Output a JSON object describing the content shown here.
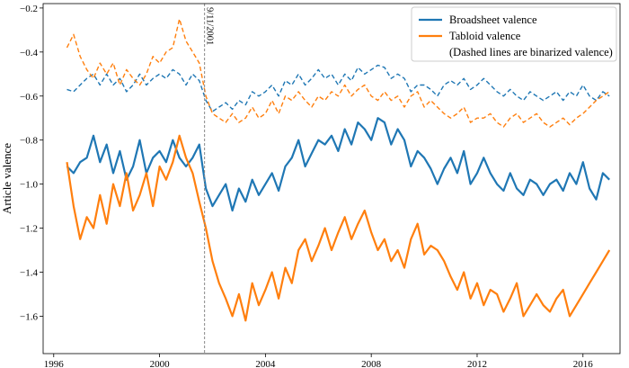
{
  "chart_data": {
    "type": "line",
    "xlabel": "",
    "ylabel": "Article valence",
    "xlim": [
      1995.6,
      2017.4
    ],
    "ylim": [
      -1.77,
      -0.18
    ],
    "x_ticks": [
      1996,
      2000,
      2004,
      2008,
      2012,
      2016
    ],
    "y_ticks": [
      -1.6,
      -1.4,
      -1.2,
      -1.0,
      -0.8,
      -0.6,
      -0.4,
      -0.2
    ],
    "grid": false,
    "legend_position": "top-right",
    "legend_note": "(Dashed lines are binarized valence)",
    "annotation": {
      "x": 2001.7,
      "text": "9/11/2001",
      "style": "dashed vertical line"
    },
    "colors": {
      "broadsheet": "#1f77b4",
      "tabloid": "#ff7f0e",
      "annotation_line": "#888888"
    },
    "series": [
      {
        "name": "Broadsheet valence",
        "style": "solid",
        "color": "#1f77b4",
        "x": [
          1996.5,
          1996.75,
          1997.0,
          1997.25,
          1997.5,
          1997.75,
          1998.0,
          1998.25,
          1998.5,
          1998.75,
          1999.0,
          1999.25,
          1999.5,
          1999.75,
          2000.0,
          2000.25,
          2000.5,
          2000.75,
          2001.0,
          2001.25,
          2001.5,
          2001.75,
          2002.0,
          2002.25,
          2002.5,
          2002.75,
          2003.0,
          2003.25,
          2003.5,
          2003.75,
          2004.0,
          2004.25,
          2004.5,
          2004.75,
          2005.0,
          2005.25,
          2005.5,
          2005.75,
          2006.0,
          2006.25,
          2006.5,
          2006.75,
          2007.0,
          2007.25,
          2007.5,
          2007.75,
          2008.0,
          2008.25,
          2008.5,
          2008.75,
          2009.0,
          2009.25,
          2009.5,
          2009.75,
          2010.0,
          2010.25,
          2010.5,
          2010.75,
          2011.0,
          2011.25,
          2011.5,
          2011.75,
          2012.0,
          2012.25,
          2012.5,
          2012.75,
          2013.0,
          2013.25,
          2013.5,
          2013.75,
          2014.0,
          2014.25,
          2014.5,
          2014.75,
          2015.0,
          2015.25,
          2015.5,
          2015.75,
          2016.0,
          2016.25,
          2016.5,
          2016.75,
          2017.0
        ],
        "values": [
          -0.92,
          -0.95,
          -0.9,
          -0.88,
          -0.78,
          -0.9,
          -0.82,
          -0.95,
          -0.85,
          -0.98,
          -0.92,
          -0.8,
          -0.95,
          -0.88,
          -0.85,
          -0.9,
          -0.8,
          -0.88,
          -0.92,
          -0.88,
          -0.82,
          -1.02,
          -1.1,
          -1.05,
          -1.0,
          -1.12,
          -1.02,
          -1.08,
          -0.98,
          -1.05,
          -1.0,
          -0.95,
          -1.03,
          -0.92,
          -0.88,
          -0.8,
          -0.92,
          -0.86,
          -0.8,
          -0.82,
          -0.78,
          -0.85,
          -0.75,
          -0.82,
          -0.72,
          -0.75,
          -0.8,
          -0.7,
          -0.72,
          -0.82,
          -0.75,
          -0.8,
          -0.92,
          -0.85,
          -0.88,
          -0.93,
          -1.0,
          -0.93,
          -0.88,
          -0.95,
          -0.85,
          -1.0,
          -0.95,
          -0.88,
          -0.95,
          -1.0,
          -1.03,
          -0.95,
          -1.02,
          -1.05,
          -0.98,
          -1.0,
          -1.05,
          -1.0,
          -0.98,
          -1.03,
          -0.95,
          -1.0,
          -0.9,
          -1.02,
          -1.07,
          -0.95,
          -0.98
        ]
      },
      {
        "name": "Tabloid valence",
        "style": "solid",
        "color": "#ff7f0e",
        "x": [
          1996.5,
          1996.75,
          1997.0,
          1997.25,
          1997.5,
          1997.75,
          1998.0,
          1998.25,
          1998.5,
          1998.75,
          1999.0,
          1999.25,
          1999.5,
          1999.75,
          2000.0,
          2000.25,
          2000.5,
          2000.75,
          2001.0,
          2001.25,
          2001.5,
          2001.75,
          2002.0,
          2002.25,
          2002.5,
          2002.75,
          2003.0,
          2003.25,
          2003.5,
          2003.75,
          2004.0,
          2004.25,
          2004.5,
          2004.75,
          2005.0,
          2005.25,
          2005.5,
          2005.75,
          2006.0,
          2006.25,
          2006.5,
          2006.75,
          2007.0,
          2007.25,
          2007.5,
          2007.75,
          2008.0,
          2008.25,
          2008.5,
          2008.75,
          2009.0,
          2009.25,
          2009.5,
          2009.75,
          2010.0,
          2010.25,
          2010.5,
          2010.75,
          2011.0,
          2011.25,
          2011.5,
          2011.75,
          2012.0,
          2012.25,
          2012.5,
          2012.75,
          2013.0,
          2013.25,
          2013.5,
          2013.75,
          2014.0,
          2014.25,
          2014.5,
          2014.75,
          2015.0,
          2015.25,
          2015.5,
          2015.75,
          2016.0,
          2016.25,
          2016.5,
          2016.75,
          2017.0
        ],
        "values": [
          -0.9,
          -1.1,
          -1.25,
          -1.15,
          -1.2,
          -1.05,
          -1.18,
          -1.0,
          -1.1,
          -0.95,
          -1.12,
          -1.05,
          -0.95,
          -1.1,
          -0.92,
          -0.98,
          -0.9,
          -0.78,
          -0.88,
          -0.95,
          -1.08,
          -1.2,
          -1.35,
          -1.45,
          -1.52,
          -1.6,
          -1.5,
          -1.62,
          -1.45,
          -1.55,
          -1.48,
          -1.4,
          -1.52,
          -1.38,
          -1.45,
          -1.3,
          -1.25,
          -1.35,
          -1.28,
          -1.2,
          -1.3,
          -1.22,
          -1.15,
          -1.25,
          -1.18,
          -1.12,
          -1.22,
          -1.3,
          -1.25,
          -1.35,
          -1.3,
          -1.38,
          -1.25,
          -1.18,
          -1.32,
          -1.28,
          -1.3,
          -1.35,
          -1.42,
          -1.48,
          -1.4,
          -1.52,
          -1.45,
          -1.55,
          -1.48,
          -1.5,
          -1.58,
          -1.52,
          -1.45,
          -1.6,
          -1.55,
          -1.5,
          -1.55,
          -1.58,
          -1.52,
          -1.48,
          -1.6,
          -1.55,
          -1.5,
          -1.45,
          -1.4,
          -1.35,
          -1.3
        ]
      },
      {
        "name": "Broadsheet binarized valence",
        "style": "dashed",
        "color": "#1f77b4",
        "x": [
          1996.5,
          1996.75,
          1997.0,
          1997.25,
          1997.5,
          1997.75,
          1998.0,
          1998.25,
          1998.5,
          1998.75,
          1999.0,
          1999.25,
          1999.5,
          1999.75,
          2000.0,
          2000.25,
          2000.5,
          2000.75,
          2001.0,
          2001.25,
          2001.5,
          2001.75,
          2002.0,
          2002.25,
          2002.5,
          2002.75,
          2003.0,
          2003.25,
          2003.5,
          2003.75,
          2004.0,
          2004.25,
          2004.5,
          2004.75,
          2005.0,
          2005.25,
          2005.5,
          2005.75,
          2006.0,
          2006.25,
          2006.5,
          2006.75,
          2007.0,
          2007.25,
          2007.5,
          2007.75,
          2008.0,
          2008.25,
          2008.5,
          2008.75,
          2009.0,
          2009.25,
          2009.5,
          2009.75,
          2010.0,
          2010.25,
          2010.5,
          2010.75,
          2011.0,
          2011.25,
          2011.5,
          2011.75,
          2012.0,
          2012.25,
          2012.5,
          2012.75,
          2013.0,
          2013.25,
          2013.5,
          2013.75,
          2014.0,
          2014.25,
          2014.5,
          2014.75,
          2015.0,
          2015.25,
          2015.5,
          2015.75,
          2016.0,
          2016.25,
          2016.5,
          2016.75,
          2017.0
        ],
        "values": [
          -0.57,
          -0.58,
          -0.55,
          -0.52,
          -0.5,
          -0.55,
          -0.5,
          -0.55,
          -0.52,
          -0.58,
          -0.55,
          -0.5,
          -0.55,
          -0.52,
          -0.5,
          -0.52,
          -0.48,
          -0.5,
          -0.55,
          -0.5,
          -0.53,
          -0.62,
          -0.67,
          -0.65,
          -0.63,
          -0.66,
          -0.62,
          -0.64,
          -0.58,
          -0.6,
          -0.58,
          -0.55,
          -0.6,
          -0.53,
          -0.55,
          -0.5,
          -0.55,
          -0.52,
          -0.48,
          -0.52,
          -0.5,
          -0.55,
          -0.5,
          -0.53,
          -0.47,
          -0.5,
          -0.48,
          -0.46,
          -0.47,
          -0.52,
          -0.5,
          -0.52,
          -0.58,
          -0.55,
          -0.55,
          -0.57,
          -0.6,
          -0.55,
          -0.53,
          -0.55,
          -0.52,
          -0.57,
          -0.55,
          -0.52,
          -0.55,
          -0.58,
          -0.6,
          -0.57,
          -0.6,
          -0.62,
          -0.58,
          -0.6,
          -0.62,
          -0.6,
          -0.58,
          -0.62,
          -0.58,
          -0.6,
          -0.55,
          -0.6,
          -0.62,
          -0.58,
          -0.6
        ]
      },
      {
        "name": "Tabloid binarized valence",
        "style": "dashed",
        "color": "#ff7f0e",
        "x": [
          1996.5,
          1996.75,
          1997.0,
          1997.25,
          1997.5,
          1997.75,
          1998.0,
          1998.25,
          1998.5,
          1998.75,
          1999.0,
          1999.25,
          1999.5,
          1999.75,
          2000.0,
          2000.25,
          2000.5,
          2000.75,
          2001.0,
          2001.25,
          2001.5,
          2001.75,
          2002.0,
          2002.25,
          2002.5,
          2002.75,
          2003.0,
          2003.25,
          2003.5,
          2003.75,
          2004.0,
          2004.25,
          2004.5,
          2004.75,
          2005.0,
          2005.25,
          2005.5,
          2005.75,
          2006.0,
          2006.25,
          2006.5,
          2006.75,
          2007.0,
          2007.25,
          2007.5,
          2007.75,
          2008.0,
          2008.25,
          2008.5,
          2008.75,
          2009.0,
          2009.25,
          2009.5,
          2009.75,
          2010.0,
          2010.25,
          2010.5,
          2010.75,
          2011.0,
          2011.25,
          2011.5,
          2011.75,
          2012.0,
          2012.25,
          2012.5,
          2012.75,
          2013.0,
          2013.25,
          2013.5,
          2013.75,
          2014.0,
          2014.25,
          2014.5,
          2014.75,
          2015.0,
          2015.25,
          2015.5,
          2015.75,
          2016.0,
          2016.25,
          2016.5,
          2016.75,
          2017.0
        ],
        "values": [
          -0.38,
          -0.32,
          -0.42,
          -0.48,
          -0.52,
          -0.45,
          -0.5,
          -0.45,
          -0.55,
          -0.48,
          -0.52,
          -0.55,
          -0.5,
          -0.42,
          -0.45,
          -0.4,
          -0.38,
          -0.25,
          -0.35,
          -0.4,
          -0.45,
          -0.6,
          -0.68,
          -0.7,
          -0.72,
          -0.68,
          -0.72,
          -0.7,
          -0.65,
          -0.7,
          -0.68,
          -0.62,
          -0.68,
          -0.6,
          -0.62,
          -0.58,
          -0.62,
          -0.65,
          -0.6,
          -0.62,
          -0.58,
          -0.6,
          -0.55,
          -0.6,
          -0.57,
          -0.55,
          -0.6,
          -0.62,
          -0.58,
          -0.62,
          -0.6,
          -0.65,
          -0.6,
          -0.58,
          -0.65,
          -0.62,
          -0.65,
          -0.68,
          -0.7,
          -0.68,
          -0.65,
          -0.72,
          -0.7,
          -0.7,
          -0.68,
          -0.72,
          -0.74,
          -0.7,
          -0.68,
          -0.72,
          -0.7,
          -0.68,
          -0.72,
          -0.74,
          -0.72,
          -0.7,
          -0.73,
          -0.7,
          -0.68,
          -0.65,
          -0.62,
          -0.6,
          -0.58
        ]
      }
    ]
  }
}
